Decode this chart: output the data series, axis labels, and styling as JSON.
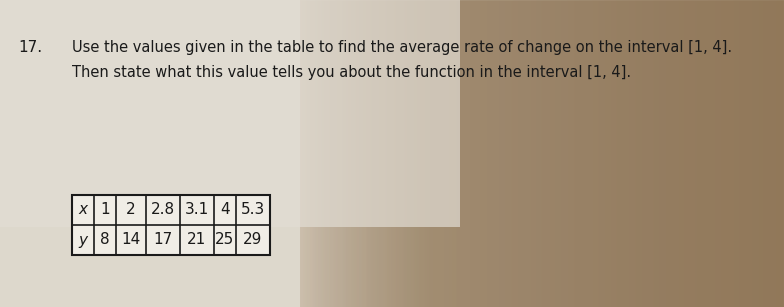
{
  "problem_number": "17.",
  "line1": "Use the values given in the table to find the average rate of change on the interval [1, 4].",
  "line2": "Then state what this value tells you about the function in the interval [1, 4].",
  "table_x_label": "x",
  "table_y_label": "y",
  "x_values": [
    "1",
    "2",
    "2.8",
    "3.1",
    "4",
    "5.3"
  ],
  "y_values": [
    "8",
    "14",
    "17",
    "21",
    "25",
    "29"
  ],
  "bg_left_color": "#c8bfb0",
  "bg_mid_color": "#d9cfc0",
  "bg_right_color": "#c0b8aa",
  "paper_color": "#e8e4dc",
  "text_color": "#1a1a1a",
  "title_fontsize": 10.5,
  "number_fontsize": 11,
  "table_fontsize": 11
}
